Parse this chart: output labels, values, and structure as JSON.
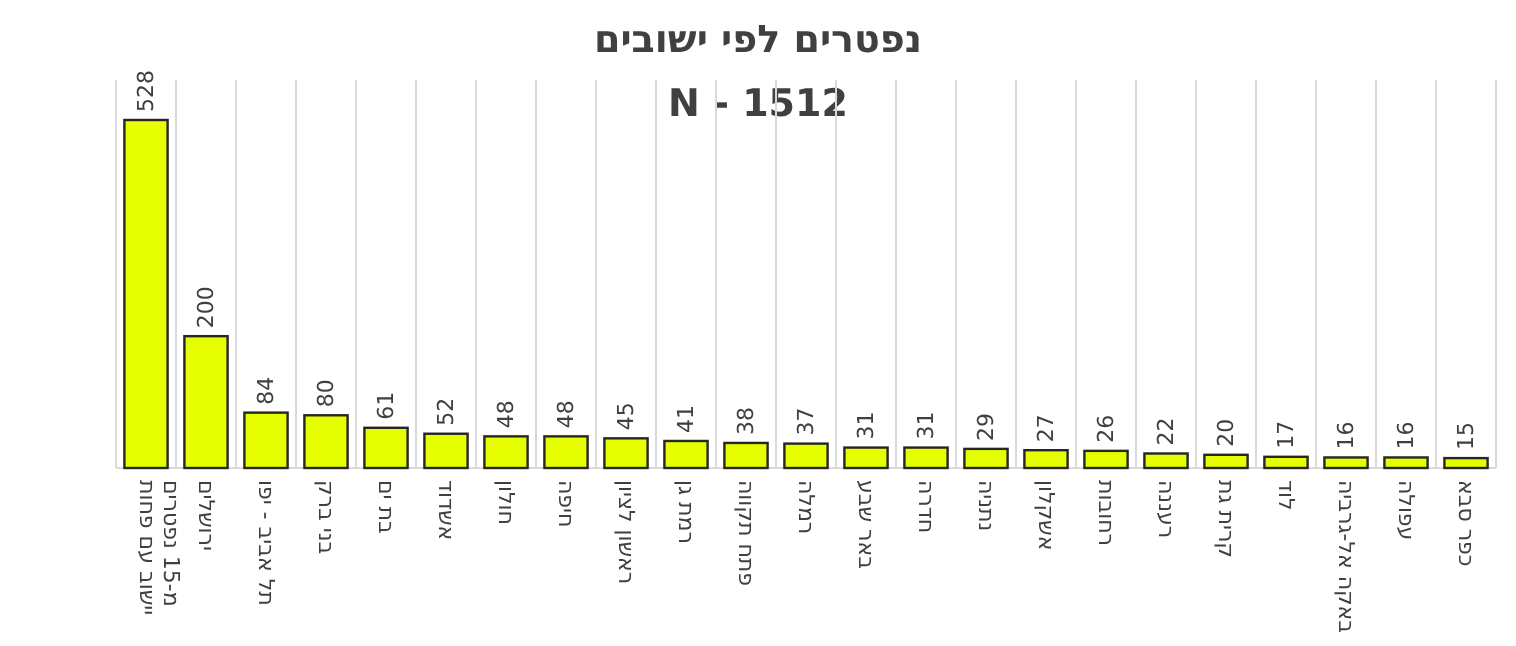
{
  "chart_data": {
    "type": "bar",
    "title": "נפטרים לפי ישובים",
    "subtitle": "N - 1512",
    "categories": [
      "יישוב עם פחות מ-15 נפטרים",
      "ירושלים",
      "תל אביב - יפו",
      "בני ברק",
      "בת ים",
      "אשדוד",
      "חולון",
      "חיפה",
      "ראשון לציון",
      "רמת גן",
      "פתח תקווה",
      "רמלה",
      "באר שבע",
      "חדרה",
      "נתניה",
      "אשקלון",
      "רחובות",
      "רעננה",
      "קרית גת",
      "לוד",
      "באקה אל-גרביה",
      "עפולה",
      "כפר סבא"
    ],
    "values": [
      528,
      200,
      84,
      80,
      61,
      52,
      48,
      48,
      45,
      41,
      38,
      37,
      31,
      31,
      29,
      27,
      26,
      22,
      20,
      17,
      16,
      16,
      15
    ],
    "color": "#e5ff00",
    "data_labels": true,
    "grid": "x"
  }
}
